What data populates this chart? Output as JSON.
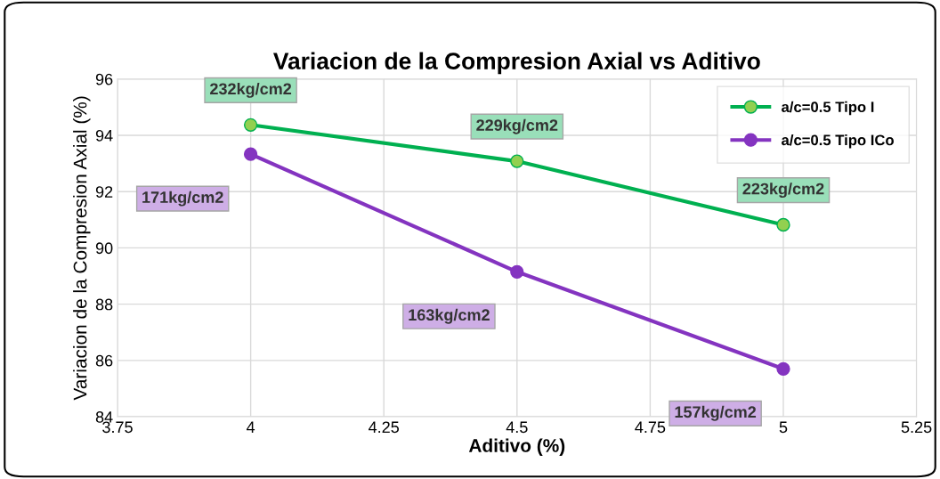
{
  "chart_data": {
    "type": "line",
    "title": "Variacion de la Compresion Axial vs Aditivo",
    "xlabel": "Aditivo (%)",
    "ylabel": "Variacion de la Compresion Axial (%)",
    "x": [
      4,
      4.5,
      5
    ],
    "series": [
      {
        "name": "a/c=0.5 Tipo I",
        "color": "#00b050",
        "values": [
          94.37,
          93.08,
          90.82
        ]
      },
      {
        "name": "a/c=0.5 Tipo ICo",
        "color": "#8434c0",
        "values": [
          93.33,
          89.15,
          85.7
        ]
      }
    ],
    "annotations": [
      {
        "text": "232kg/cm2",
        "x": 4,
        "y": 94.37
      },
      {
        "text": "229kg/cm2",
        "x": 4.5,
        "y": 93.08
      },
      {
        "text": "223kg/cm2",
        "x": 5,
        "y": 90.82
      },
      {
        "text": "171kg/cm2",
        "x": 4,
        "y": 93.33
      },
      {
        "text": "163kg/cm2",
        "x": 4.5,
        "y": 89.15
      },
      {
        "text": "157kg/cm2",
        "x": 5,
        "y": 85.7
      }
    ],
    "xlim": [
      3.75,
      5.25
    ],
    "xticks": [
      3.75,
      4,
      4.25,
      4.5,
      4.75,
      5,
      5.25
    ],
    "ylim": [
      84,
      96
    ],
    "yticks": [
      84,
      86,
      88,
      90,
      92,
      94,
      96
    ],
    "grid": true,
    "legend": "top right",
    "marker": "circle",
    "line_style": "solid"
  }
}
